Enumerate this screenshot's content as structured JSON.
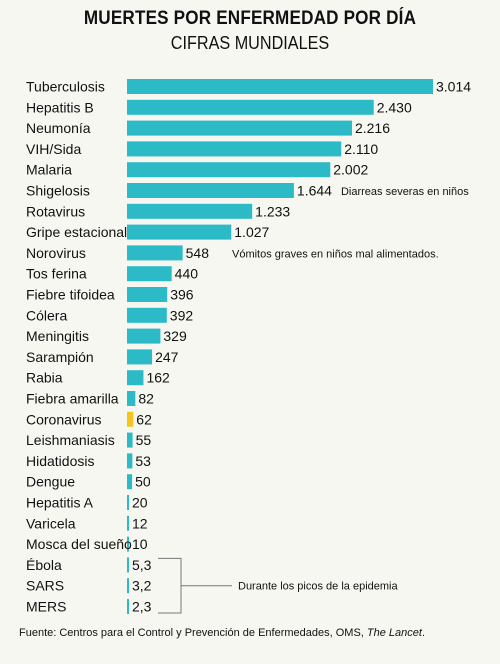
{
  "title": "MUERTES POR ENFERMEDAD POR DÍA",
  "subtitle": "CIFRAS MUNDIALES",
  "source": {
    "prefix": "Fuente: Centros para el Control y Prevención de Enfermedades, OMS, ",
    "italic": "The Lancet",
    "suffix": "."
  },
  "colors": {
    "bar": "#2cbac6",
    "highlight": "#f5c51d",
    "bracket": "#777777"
  },
  "chart_data": {
    "type": "bar",
    "orientation": "horizontal",
    "highlighted_category": "Coronavirus",
    "categories": [
      "Tuberculosis",
      "Hepatitis B",
      "Neumonía",
      "VIH/Sida",
      "Malaria",
      "Shigelosis",
      "Rotavirus",
      "Gripe estacional",
      "Norovirus",
      "Tos ferina",
      "Fiebre tifoidea",
      "Cólera",
      "Meningitis",
      "Sarampión",
      "Rabia",
      "Fiebra amarilla",
      "Coronavirus",
      "Leishmaniasis",
      "Hidatidosis",
      "Dengue",
      "Hepatitis A",
      "Varicela",
      "Mosca del sueño",
      "Ébola",
      "SARS",
      "MERS"
    ],
    "values": [
      3014,
      2430,
      2216,
      2110,
      2002,
      1644,
      1233,
      1027,
      548,
      440,
      396,
      392,
      329,
      247,
      162,
      82,
      62,
      55,
      53,
      50,
      20,
      12,
      10,
      5.3,
      3.2,
      2.3
    ],
    "value_labels": [
      "3.014",
      "2.430",
      "2.216",
      "2.110",
      "2.002",
      "1.644",
      "1.233",
      "1.027",
      "548",
      "440",
      "396",
      "392",
      "329",
      "247",
      "162",
      "82",
      "62",
      "55",
      "53",
      "50",
      "20",
      "12",
      "10",
      "5,3",
      "3,2",
      "2,3"
    ],
    "annotations": [
      {
        "category": "Shigelosis",
        "text": "Diarreas severas en niños"
      },
      {
        "category": "Norovirus",
        "text": "Vómitos graves en niños mal alimentados."
      },
      {
        "categories": [
          "Ébola",
          "SARS",
          "MERS"
        ],
        "text": "Durante los picos de la epidemia"
      }
    ]
  }
}
